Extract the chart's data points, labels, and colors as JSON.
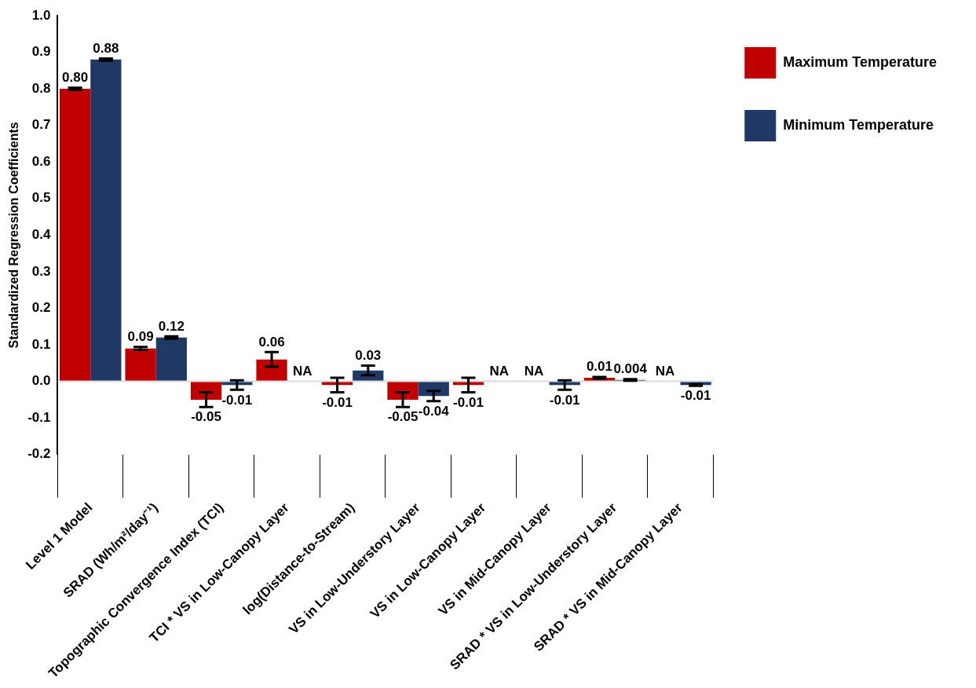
{
  "chart_data": {
    "type": "bar",
    "ylabel": "Standardized Regression Coefficients",
    "categories": [
      "Level 1 Model",
      "SRAD (Wh/m²/day⁻¹)",
      "Topographic Convergence Index (TCI)",
      "TCI * VS in Low-Canopy Layer",
      "log(Distance-to-Stream)",
      "VS in Low-Understory Layer",
      "VS in Low-Canopy Layer",
      "VS in Mid-Canopy Layer",
      "SRAD * VS in Low-Understory Layer",
      "SRAD * VS in Mid-Canopy Layer"
    ],
    "series": [
      {
        "name": "Maximum Temperature",
        "color": "#c00000",
        "values": [
          0.8,
          0.09,
          -0.05,
          0.06,
          -0.01,
          -0.05,
          -0.01,
          null,
          0.01,
          null
        ],
        "errors": [
          0.003,
          0.004,
          0.02,
          0.02,
          0.02,
          0.02,
          0.02,
          null,
          0.002,
          null
        ],
        "value_labels": [
          "0.80",
          "0.09",
          "-0.05",
          "0.06",
          "-0.01",
          "-0.05",
          "-0.01",
          "NA",
          "0.01",
          "NA"
        ]
      },
      {
        "name": "Minimum Temperature",
        "color": "#1f3864",
        "values": [
          0.88,
          0.12,
          -0.01,
          null,
          0.03,
          -0.04,
          null,
          -0.01,
          0.004,
          -0.01
        ],
        "errors": [
          0.003,
          0.003,
          0.013,
          null,
          0.013,
          0.014,
          null,
          0.013,
          0.002,
          0.002
        ],
        "value_labels": [
          "0.88",
          "0.12",
          "-0.01",
          "NA",
          "0.03",
          "-0.04",
          "NA",
          "-0.01",
          "0.004",
          "-0.01"
        ]
      }
    ],
    "ylim": [
      -0.2,
      1.0
    ],
    "yticks": [
      {
        "value": -0.2,
        "label": "-0.2"
      },
      {
        "value": -0.1,
        "label": "-0.1"
      },
      {
        "value": 0,
        "label": "0.0"
      },
      {
        "value": 0.1,
        "label": "0.1"
      },
      {
        "value": 0.2,
        "label": "0.2"
      },
      {
        "value": 0.3,
        "label": "0.3"
      },
      {
        "value": 0.4,
        "label": "0.4"
      },
      {
        "value": 0.5,
        "label": "0.5"
      },
      {
        "value": 0.6,
        "label": "0.6"
      },
      {
        "value": 0.7,
        "label": "0.7"
      },
      {
        "value": 0.8,
        "label": "0.8"
      },
      {
        "value": 0.9,
        "label": "0.9"
      },
      {
        "value": 1.0,
        "label": "1.0"
      }
    ],
    "ref_lines": [
      {
        "axis": "y",
        "value": 0,
        "color": "#d9d9d9"
      }
    ],
    "legend": "top right",
    "grid": false
  }
}
